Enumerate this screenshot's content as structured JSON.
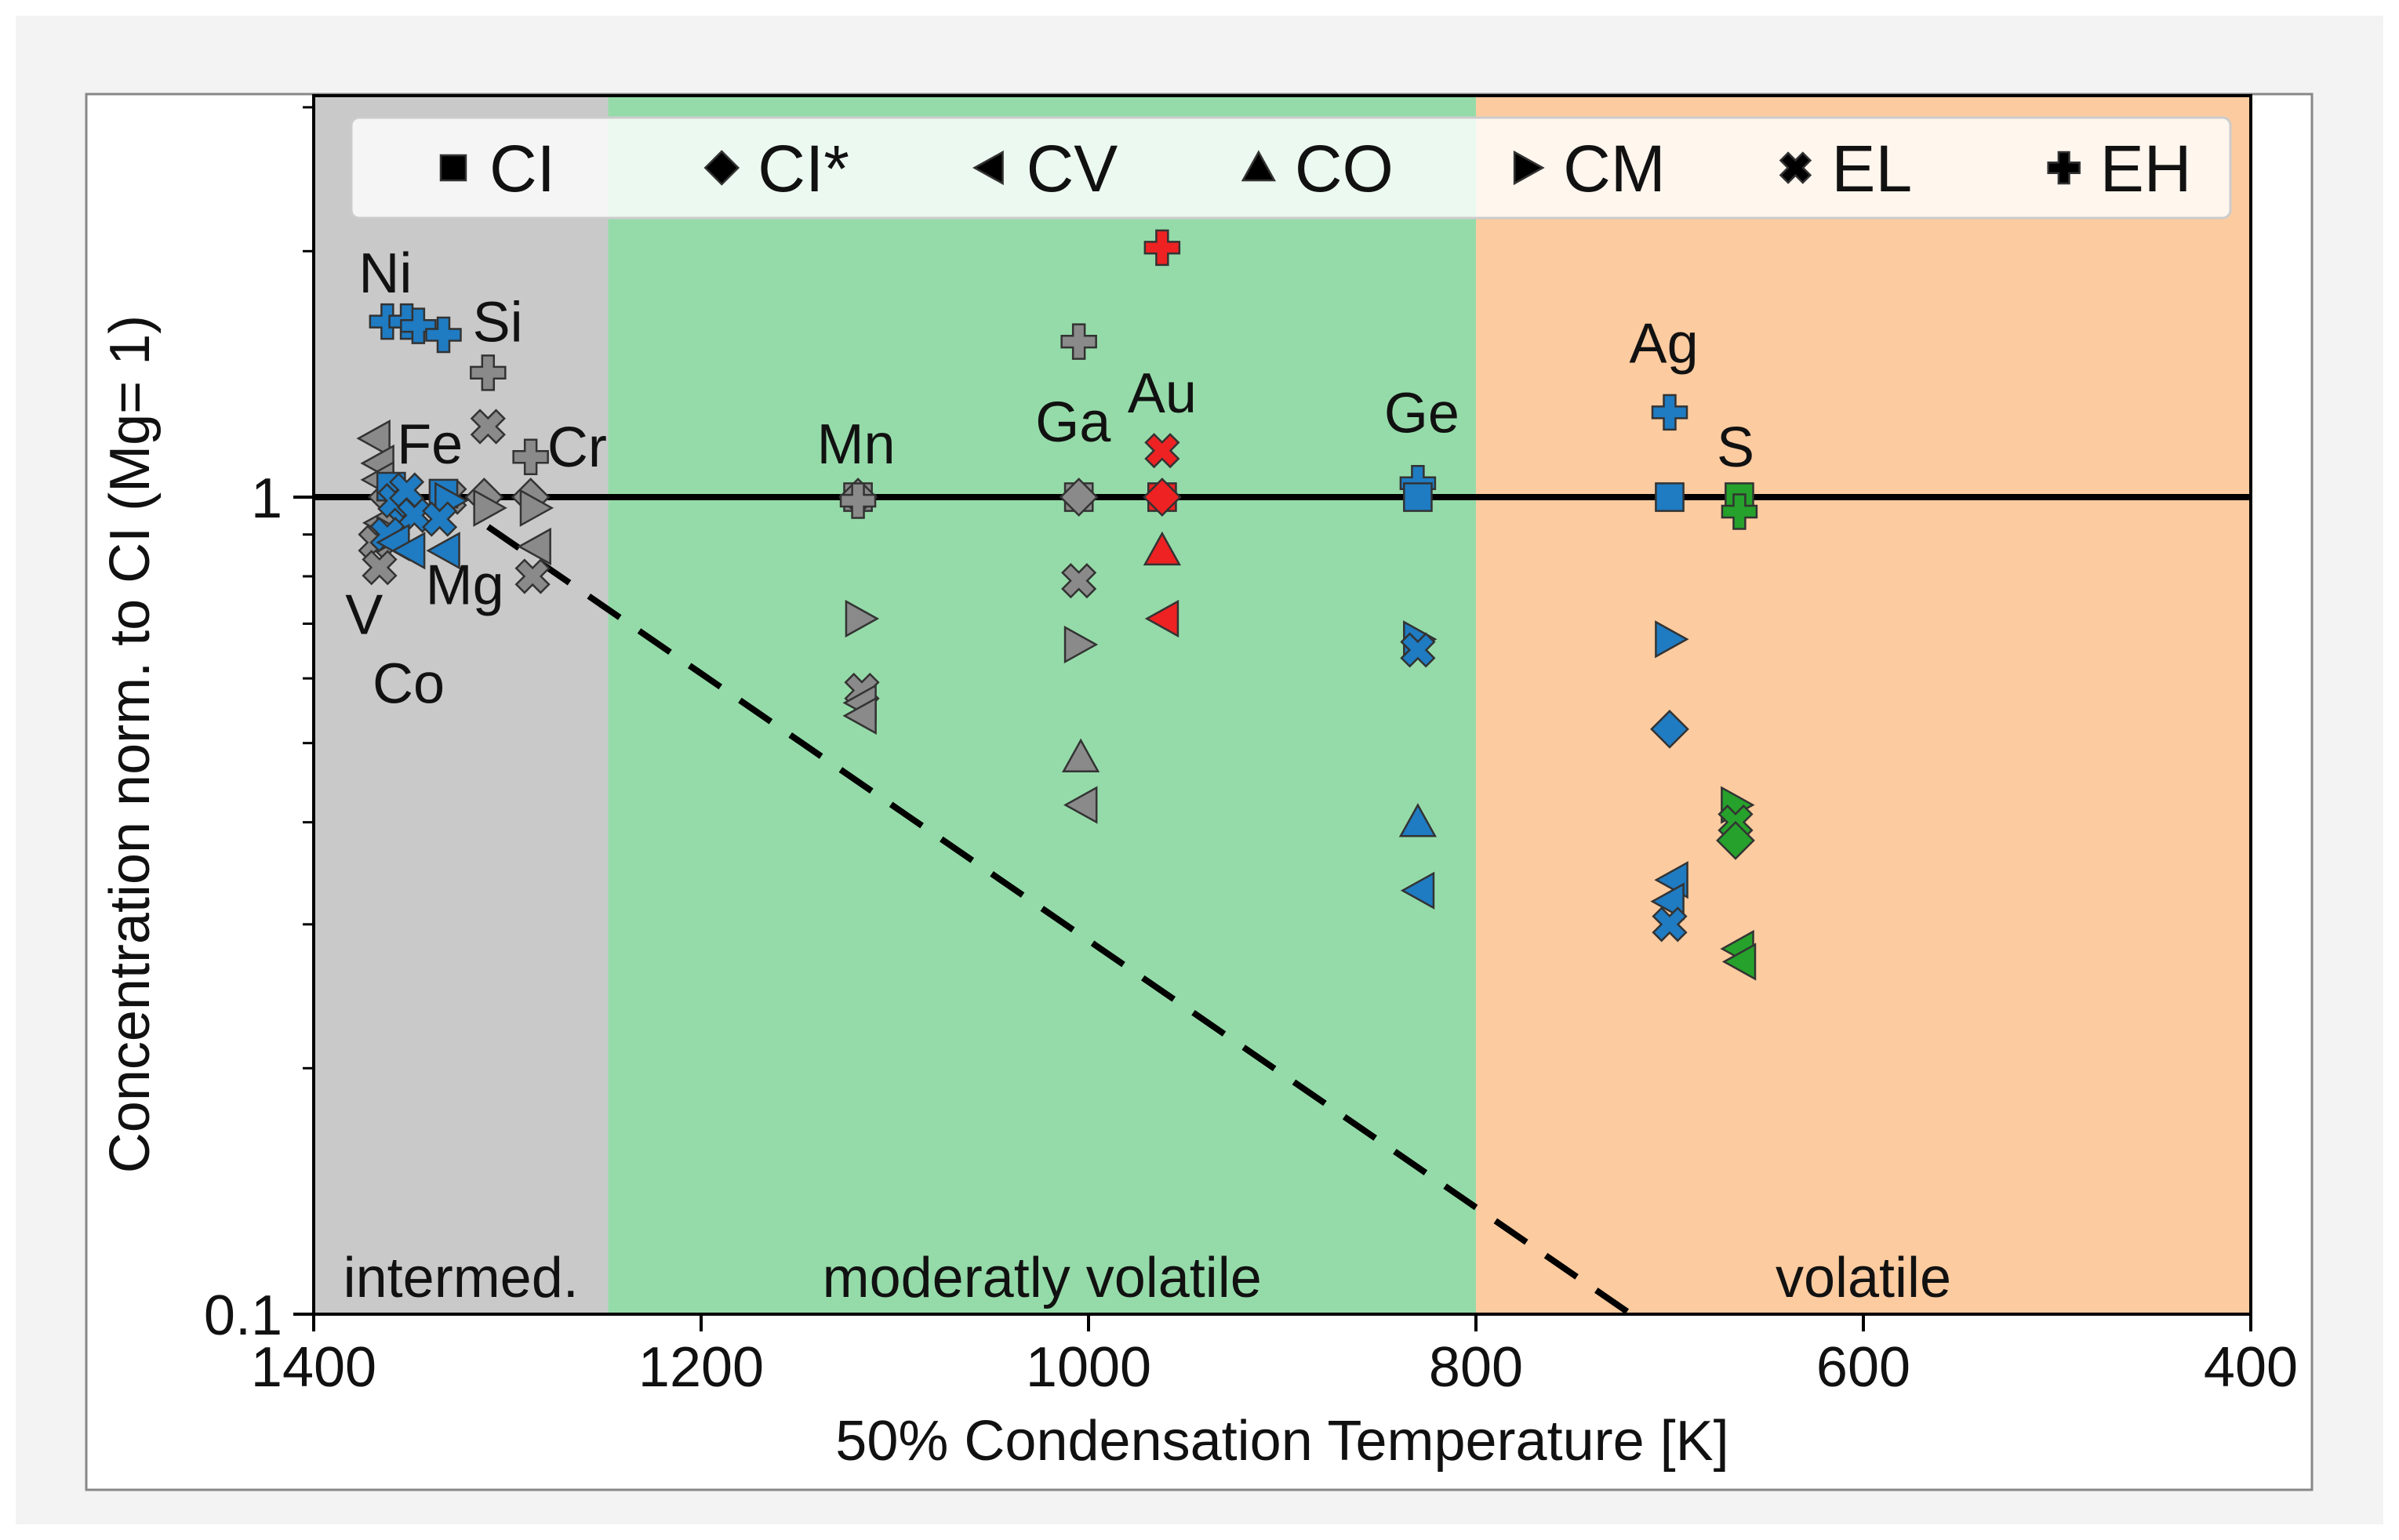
{
  "chart_data": {
    "type": "scatter",
    "x_scale": "linear",
    "y_scale": "log",
    "xlabel": "50% Condensation Temperature [K]",
    "ylabel": "Concentration norm. to CI (Mg= 1)",
    "xlim": [
      1400,
      400
    ],
    "ylim": [
      0.1,
      3.1
    ],
    "x_ticks": [
      1400,
      1200,
      1000,
      800,
      600,
      400
    ],
    "y_ticks": [
      {
        "value": 1,
        "label": "1"
      },
      {
        "value": 0.1,
        "label": "0.1"
      }
    ],
    "regions": [
      {
        "label": "intermed.",
        "x_from": 1400,
        "x_to": 1248,
        "color": "#c9c9c9"
      },
      {
        "label": "moderatly volatile",
        "x_from": 1248,
        "x_to": 800,
        "color": "#95dba9"
      },
      {
        "label": "volatile",
        "x_from": 800,
        "x_to": 400,
        "color": "#fccb9f"
      }
    ],
    "reference_line": {
      "y": 1,
      "style": "solid",
      "color": "#000000"
    },
    "trend_line": {
      "points": [
        [
          1310,
          0.92
        ],
        [
          720,
          0.1
        ]
      ],
      "style": "dashed",
      "color": "#000000"
    },
    "legend": {
      "position": "top",
      "entries": [
        {
          "name": "CI",
          "marker": "square"
        },
        {
          "name": "CI*",
          "marker": "diamond"
        },
        {
          "name": "CV",
          "marker": "triangle-left"
        },
        {
          "name": "CO",
          "marker": "triangle-up"
        },
        {
          "name": "CM",
          "marker": "triangle-right"
        },
        {
          "name": "EL",
          "marker": "x"
        },
        {
          "name": "EH",
          "marker": "plus"
        }
      ]
    },
    "colors": {
      "gray": "#8a8a8a",
      "blue": "#1f7bc2",
      "red": "#ee2222",
      "green": "#26a12b"
    },
    "element_labels": [
      {
        "text": "Ni",
        "x": 1363,
        "y": 1.78
      },
      {
        "text": "Si",
        "x": 1305,
        "y": 1.55
      },
      {
        "text": "Fe",
        "x": 1340,
        "y": 1.1
      },
      {
        "text": "Cr",
        "x": 1264,
        "y": 1.09
      },
      {
        "text": "Mg",
        "x": 1322,
        "y": 0.74
      },
      {
        "text": "V",
        "x": 1374,
        "y": 0.68
      },
      {
        "text": "Co",
        "x": 1351,
        "y": 0.56
      },
      {
        "text": "Mn",
        "x": 1120,
        "y": 1.1
      },
      {
        "text": "Ga",
        "x": 1008,
        "y": 1.17
      },
      {
        "text": "Au",
        "x": 962,
        "y": 1.27
      },
      {
        "text": "Ge",
        "x": 828,
        "y": 1.2
      },
      {
        "text": "Ag",
        "x": 703,
        "y": 1.46
      },
      {
        "text": "S",
        "x": 666,
        "y": 1.09
      }
    ],
    "series": [
      {
        "name": "Ni/Si/Fe/Cr/Mg/V/Co (gray)",
        "color": "gray",
        "points": [
          {
            "x": 1368,
            "y": 1.18,
            "m": "triangle-left"
          },
          {
            "x": 1366,
            "y": 1.1,
            "m": "triangle-left"
          },
          {
            "x": 1366,
            "y": 1.05,
            "m": "triangle-left"
          },
          {
            "x": 1365,
            "y": 0.93,
            "m": "triangle-left"
          },
          {
            "x": 1368,
            "y": 0.88,
            "m": "x"
          },
          {
            "x": 1366,
            "y": 0.82,
            "m": "x"
          },
          {
            "x": 1362,
            "y": 1.0,
            "m": "diamond"
          },
          {
            "x": 1360,
            "y": 0.9,
            "m": "triangle-right"
          },
          {
            "x": 1310,
            "y": 1.42,
            "m": "plus"
          },
          {
            "x": 1310,
            "y": 1.22,
            "m": "x"
          },
          {
            "x": 1312,
            "y": 1.0,
            "m": "diamond"
          },
          {
            "x": 1310,
            "y": 0.97,
            "m": "triangle-right"
          },
          {
            "x": 1330,
            "y": 1.0,
            "m": "x"
          },
          {
            "x": 1288,
            "y": 1.12,
            "m": "plus"
          },
          {
            "x": 1288,
            "y": 1.0,
            "m": "diamond"
          },
          {
            "x": 1286,
            "y": 0.97,
            "m": "triangle-right"
          },
          {
            "x": 1285,
            "y": 0.87,
            "m": "triangle-left"
          },
          {
            "x": 1287,
            "y": 0.8,
            "m": "x"
          }
        ]
      },
      {
        "name": "Ni/Fe/Co/Mg/V (blue)",
        "color": "blue",
        "points": [
          {
            "x": 1362,
            "y": 1.64,
            "m": "plus"
          },
          {
            "x": 1352,
            "y": 1.64,
            "m": "plus"
          },
          {
            "x": 1346,
            "y": 1.62,
            "m": "plus"
          },
          {
            "x": 1333,
            "y": 1.58,
            "m": "plus"
          },
          {
            "x": 1360,
            "y": 1.03,
            "m": "square"
          },
          {
            "x": 1355,
            "y": 0.97,
            "m": "diamond"
          },
          {
            "x": 1358,
            "y": 0.99,
            "m": "x"
          },
          {
            "x": 1352,
            "y": 1.02,
            "m": "x"
          },
          {
            "x": 1348,
            "y": 0.95,
            "m": "x"
          },
          {
            "x": 1362,
            "y": 0.9,
            "m": "x"
          },
          {
            "x": 1358,
            "y": 0.88,
            "m": "triangle-left"
          },
          {
            "x": 1350,
            "y": 0.86,
            "m": "triangle-left"
          },
          {
            "x": 1333,
            "y": 1.01,
            "m": "square"
          },
          {
            "x": 1330,
            "y": 0.99,
            "m": "triangle-right"
          },
          {
            "x": 1335,
            "y": 0.94,
            "m": "x"
          },
          {
            "x": 1332,
            "y": 0.86,
            "m": "triangle-left"
          }
        ]
      },
      {
        "name": "Mn",
        "color": "gray",
        "points": [
          {
            "x": 1119,
            "y": 1.0,
            "m": "square"
          },
          {
            "x": 1119,
            "y": 1.0,
            "m": "diamond"
          },
          {
            "x": 1119,
            "y": 0.99,
            "m": "plus"
          },
          {
            "x": 1118,
            "y": 0.71,
            "m": "triangle-right"
          },
          {
            "x": 1117,
            "y": 0.58,
            "m": "x"
          },
          {
            "x": 1117,
            "y": 0.56,
            "m": "triangle-left"
          },
          {
            "x": 1117,
            "y": 0.54,
            "m": "triangle-left"
          }
        ]
      },
      {
        "name": "Ga",
        "color": "gray",
        "points": [
          {
            "x": 1005,
            "y": 1.55,
            "m": "plus"
          },
          {
            "x": 1005,
            "y": 1.0,
            "m": "square"
          },
          {
            "x": 1005,
            "y": 1.0,
            "m": "diamond"
          },
          {
            "x": 1005,
            "y": 0.79,
            "m": "x"
          },
          {
            "x": 1005,
            "y": 0.66,
            "m": "triangle-right"
          },
          {
            "x": 1004,
            "y": 0.48,
            "m": "triangle-up"
          },
          {
            "x": 1003,
            "y": 0.42,
            "m": "triangle-left"
          }
        ]
      },
      {
        "name": "Au",
        "color": "red",
        "points": [
          {
            "x": 962,
            "y": 2.02,
            "m": "plus"
          },
          {
            "x": 962,
            "y": 1.14,
            "m": "x"
          },
          {
            "x": 962,
            "y": 1.0,
            "m": "square"
          },
          {
            "x": 962,
            "y": 1.0,
            "m": "diamond"
          },
          {
            "x": 962,
            "y": 0.86,
            "m": "triangle-up"
          },
          {
            "x": 961,
            "y": 0.71,
            "m": "triangle-left"
          }
        ]
      },
      {
        "name": "Ge",
        "color": "blue",
        "points": [
          {
            "x": 830,
            "y": 1.04,
            "m": "plus"
          },
          {
            "x": 830,
            "y": 1.0,
            "m": "square"
          },
          {
            "x": 830,
            "y": 0.67,
            "m": "triangle-right"
          },
          {
            "x": 830,
            "y": 0.65,
            "m": "x"
          },
          {
            "x": 830,
            "y": 0.4,
            "m": "triangle-up"
          },
          {
            "x": 829,
            "y": 0.33,
            "m": "triangle-left"
          }
        ]
      },
      {
        "name": "Ag",
        "color": "blue",
        "points": [
          {
            "x": 700,
            "y": 1.27,
            "m": "plus"
          },
          {
            "x": 700,
            "y": 1.0,
            "m": "square"
          },
          {
            "x": 700,
            "y": 0.67,
            "m": "triangle-right"
          },
          {
            "x": 700,
            "y": 0.52,
            "m": "diamond"
          },
          {
            "x": 698,
            "y": 0.34,
            "m": "triangle-left"
          },
          {
            "x": 700,
            "y": 0.32,
            "m": "triangle-left"
          },
          {
            "x": 700,
            "y": 0.3,
            "m": "x"
          }
        ]
      },
      {
        "name": "S",
        "color": "green",
        "points": [
          {
            "x": 664,
            "y": 1.0,
            "m": "square"
          },
          {
            "x": 664,
            "y": 0.96,
            "m": "plus"
          },
          {
            "x": 666,
            "y": 0.42,
            "m": "triangle-right"
          },
          {
            "x": 666,
            "y": 0.4,
            "m": "x"
          },
          {
            "x": 666,
            "y": 0.38,
            "m": "diamond"
          },
          {
            "x": 664,
            "y": 0.28,
            "m": "triangle-left"
          },
          {
            "x": 663,
            "y": 0.27,
            "m": "triangle-left"
          }
        ]
      }
    ]
  }
}
